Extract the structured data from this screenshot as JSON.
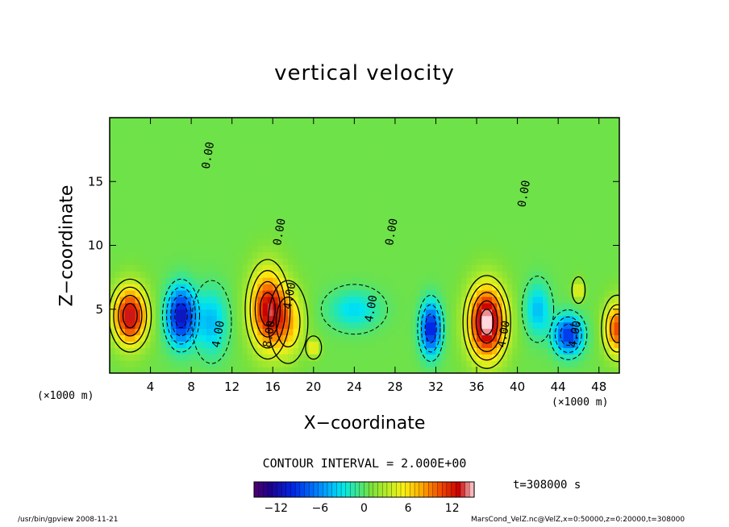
{
  "chart_data": {
    "type": "heatmap",
    "title": "vertical velocity",
    "xlabel": "X−coordinate",
    "ylabel": "Z−coordinate",
    "x_unit": "(×1000 m)",
    "y_unit": "(×1000 m)",
    "xlim": [
      0,
      50
    ],
    "ylim": [
      0,
      20
    ],
    "x_ticks": [
      "4",
      "8",
      "12",
      "16",
      "20",
      "24",
      "28",
      "32",
      "36",
      "40",
      "44",
      "48"
    ],
    "y_ticks": [
      "5",
      "10",
      "15"
    ],
    "contour_interval_text": "CONTOUR INTERVAL = 2.000E+00",
    "time_text": "t=308000 s",
    "contour_labels": [
      {
        "text": "0.00",
        "x": 10,
        "y": 17
      },
      {
        "text": "0.00",
        "x": 17,
        "y": 11
      },
      {
        "text": "0.00",
        "x": 28,
        "y": 11
      },
      {
        "text": "0.00",
        "x": 41,
        "y": 14
      },
      {
        "text": "4.00",
        "x": 11,
        "y": 3
      },
      {
        "text": "4.00",
        "x": 18,
        "y": 6
      },
      {
        "text": "8.00",
        "x": 16,
        "y": 3
      },
      {
        "text": "4.00",
        "x": 26,
        "y": 5
      },
      {
        "text": "4.00",
        "x": 39,
        "y": 3
      },
      {
        "text": "4.00",
        "x": 46,
        "y": 3
      }
    ],
    "cells": [
      {
        "x": 2,
        "z": 4.5,
        "w": -0.2,
        "sx": 1.6,
        "sz": 2.2,
        "v": 13
      },
      {
        "x": 7,
        "z": 4.5,
        "w": 0,
        "sx": 1.4,
        "sz": 2.2,
        "v": -12
      },
      {
        "x": 10,
        "z": 4,
        "w": 0,
        "sx": 1.5,
        "sz": 2.5,
        "v": -5
      },
      {
        "x": 15.5,
        "z": 5,
        "w": 0,
        "sx": 1.7,
        "sz": 3,
        "v": 12
      },
      {
        "x": 17.5,
        "z": 4,
        "w": 0,
        "sx": 1.5,
        "sz": 2.5,
        "v": 6
      },
      {
        "x": 24,
        "z": 5,
        "w": 0,
        "sx": 2.5,
        "sz": 1.5,
        "v": -4
      },
      {
        "x": 31.5,
        "z": 3.5,
        "w": 0,
        "sx": 1,
        "sz": 2,
        "v": -11
      },
      {
        "x": 37,
        "z": 4,
        "w": 0,
        "sx": 1.8,
        "sz": 2.8,
        "v": 15
      },
      {
        "x": 42,
        "z": 5,
        "w": 0,
        "sx": 1.2,
        "sz": 2,
        "v": -5
      },
      {
        "x": 45,
        "z": 3,
        "w": 0,
        "sx": 1.4,
        "sz": 1.5,
        "v": -10
      },
      {
        "x": 49.8,
        "z": 3.5,
        "w": 0,
        "sx": 1.2,
        "sz": 2,
        "v": 10
      },
      {
        "x": 46,
        "z": 6.5,
        "w": 0,
        "sx": 0.5,
        "sz": 0.8,
        "v": 5
      },
      {
        "x": 20,
        "z": 2,
        "w": 0,
        "sx": 0.6,
        "sz": 0.7,
        "v": 5
      }
    ]
  },
  "colorbar": {
    "tick_labels": [
      "−12",
      "−6",
      "0",
      "6",
      "12"
    ],
    "tick_values": [
      -12,
      -6,
      0,
      6,
      12
    ],
    "range": [
      -15,
      15
    ]
  },
  "footer": {
    "program": "/usr/bin/gpview  2008-11-21",
    "source": "MarsCond_VelZ.nc@VelZ,x=0:50000,z=0:20000,t=308000"
  }
}
